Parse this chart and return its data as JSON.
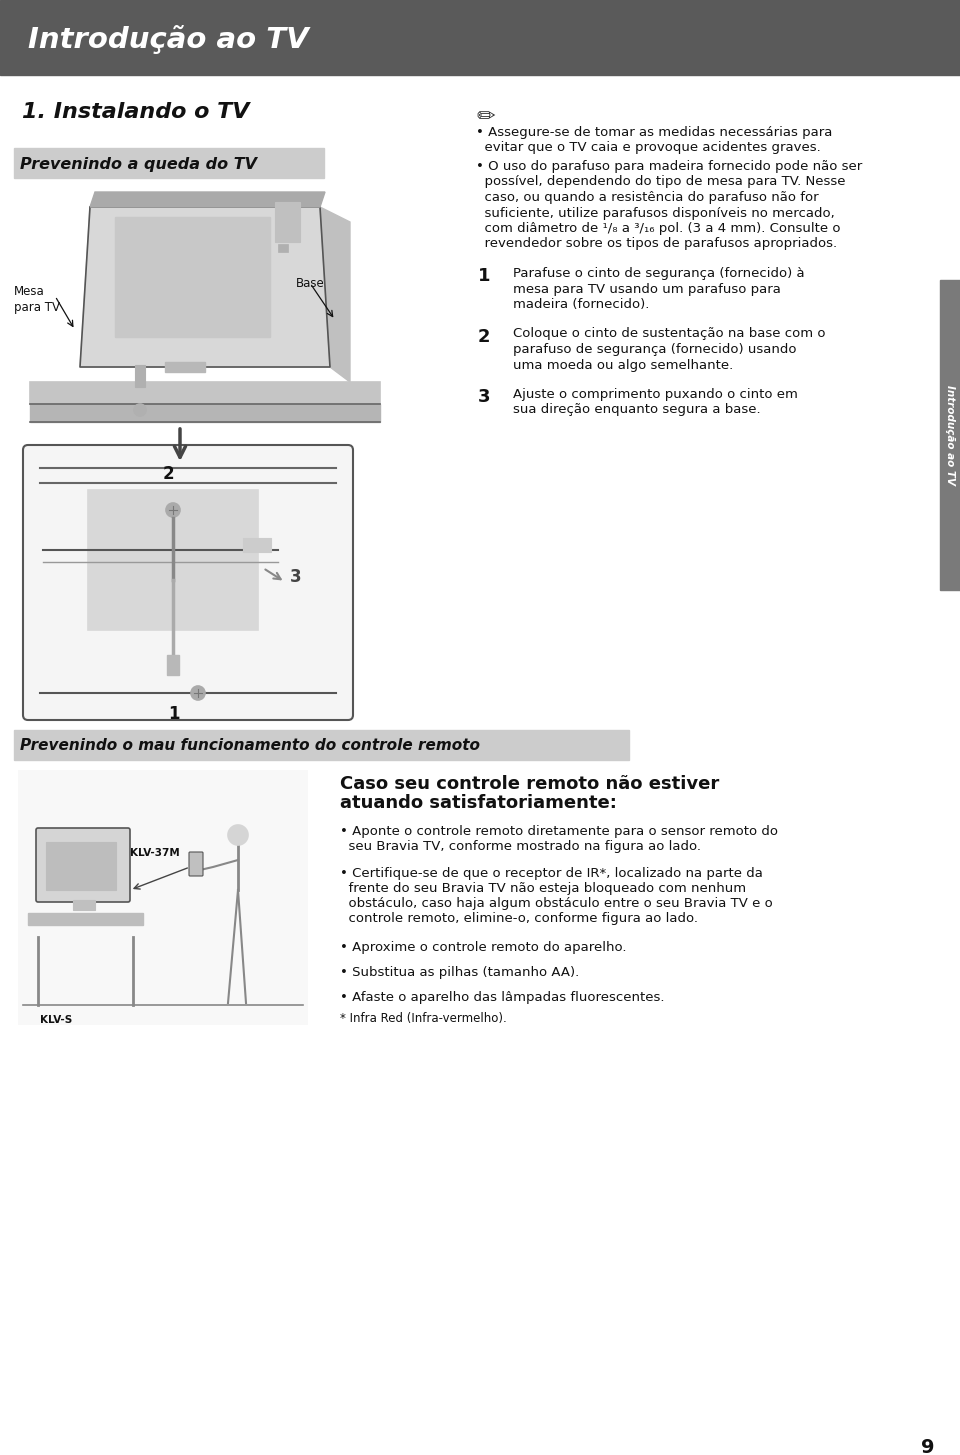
{
  "page_bg": "#ffffff",
  "header_bg": "#5a5a5a",
  "header_text": "Introdução ao TV",
  "header_text_color": "#ffffff",
  "sidebar_bg": "#888888",
  "sidebar_text": "Introdução ao TV",
  "section1_title": "1. Instalando o TV",
  "subsection1_title": "Prevenindo a queda do TV",
  "subsection2_title": "Prevenindo o mau funcionamento do controle remoto",
  "label_mesa": "Mesa\npara TV",
  "label_base": "Base",
  "label_klv37m": "KLV-37M",
  "label_klvs": "KLV-S",
  "pencil_icon": "✎̲",
  "bullet1_l1": "• Assegure-se de tomar as medidas necessárias para",
  "bullet1_l2": "  evitar que o TV caia e provoque acidentes graves.",
  "bullet2_l1": "• O uso do parafuso para madeira fornecido pode não ser",
  "bullet2_l2": "  possível, dependendo do tipo de mesa para TV. Nesse",
  "bullet2_l3": "  caso, ou quando a resistência do parafuso não for",
  "bullet2_l4": "  suficiente, utilize parafusos disponíveis no mercado,",
  "bullet2_l5": "  com diâmetro de ¹/₈ a ³/₁₆ pol. (3 a 4 mm). Consulte o",
  "bullet2_l6": "  revendedor sobre os tipos de parafusos apropriados.",
  "step1_num": "1",
  "step1_l1": "    Parafuse o cinto de segurança (fornecido) à",
  "step1_l2": "    mesa para TV usando um parafuso para",
  "step1_l3": "    madeira (fornecido).",
  "step2_num": "2",
  "step2_l1": "    Coloque o cinto de sustentação na base com o",
  "step2_l2": "    parafuso de segurança (fornecido) usando",
  "step2_l3": "    uma moeda ou algo semelhante.",
  "step3_num": "3",
  "step3_l1": "    Ajuste o comprimento puxando o cinto em",
  "step3_l2": "    sua direção enquanto segura a base.",
  "remote_t1": "Caso seu controle remoto não estiver",
  "remote_t2": "atuando satisfatoriamente:",
  "remote_b1_l1": "• Aponte o controle remoto diretamente para o sensor remoto do",
  "remote_b1_l2": "  seu Bravia TV, conforme mostrado na figura ao lado.",
  "remote_b2_l1": "• Certifique-se de que o receptor de IR*, localizado na parte da",
  "remote_b2_l2": "  frente do seu Bravia TV não esteja bloqueado com nenhum",
  "remote_b2_l3": "  obstáculo, caso haja algum obstáculo entre o seu Bravia TV e o",
  "remote_b2_l4": "  controle remoto, elimine-o, conforme figura ao lado.",
  "remote_b3": "• Aproxime o controle remoto do aparelho.",
  "remote_b4": "• Substitua as pilhas (tamanho AA).",
  "remote_b5": "• Afaste o aparelho das lâmpadas fluorescentes.",
  "remote_fn": "* Infra Red (Infra-vermelho).",
  "page_num": "9",
  "subsection_bg": "#cccccc",
  "sidebar_color": "#7a7a7a"
}
